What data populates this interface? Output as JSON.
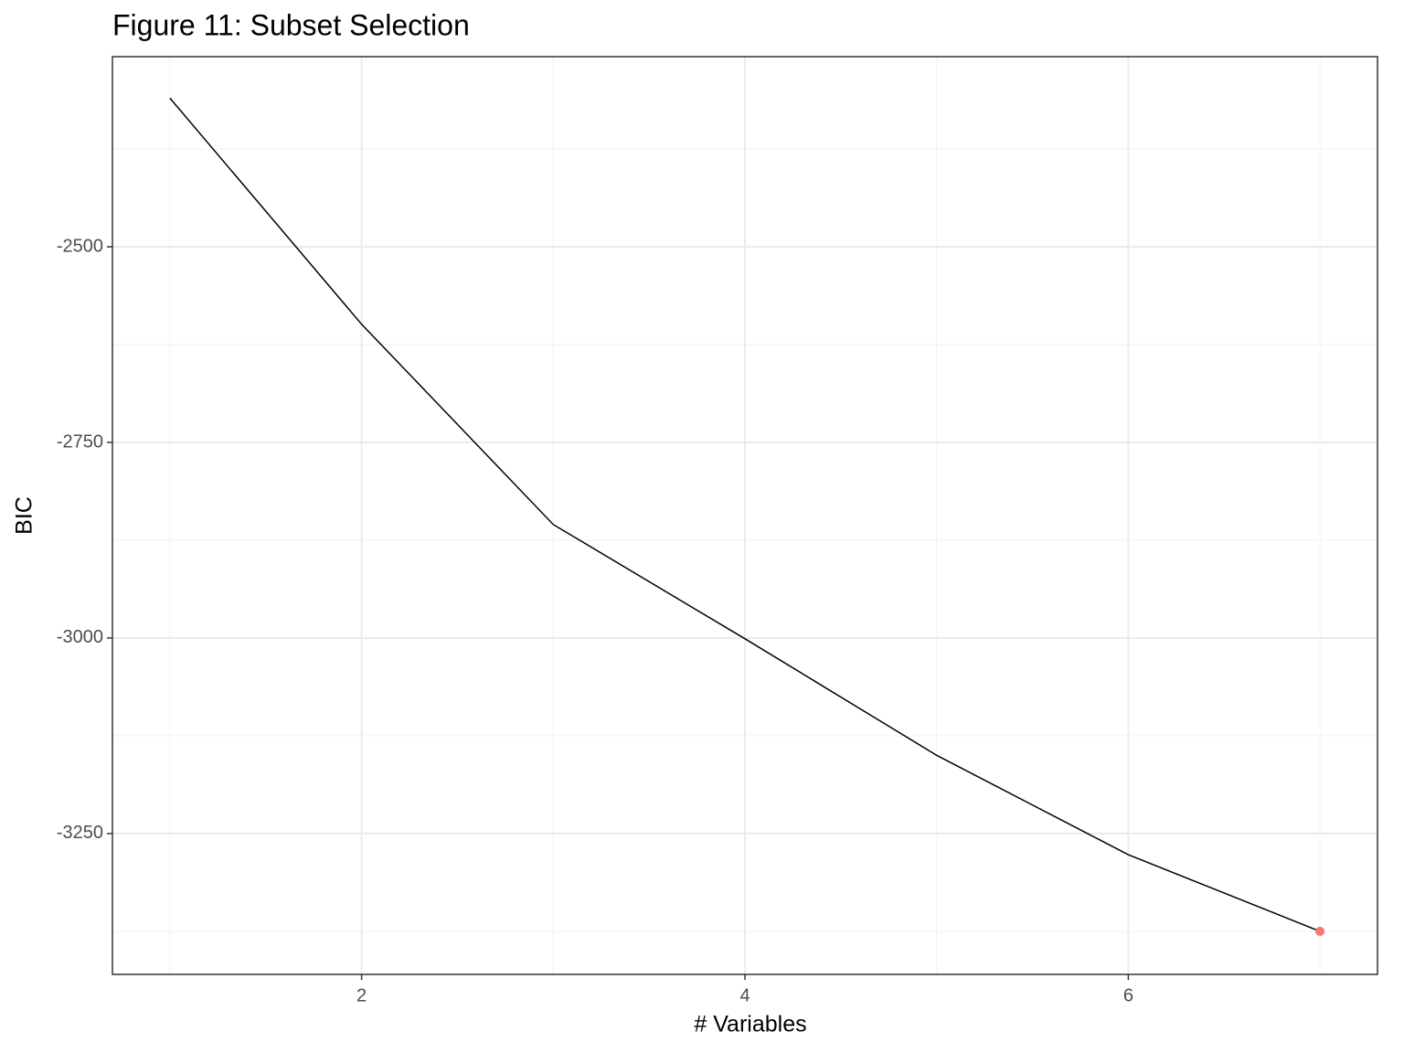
{
  "chart_data": {
    "type": "line",
    "title": "Figure 11: Subset Selection",
    "x_label": "# Variables",
    "y_label": "BIC",
    "x": [
      1,
      2,
      3,
      4,
      5,
      6,
      7
    ],
    "series": [
      {
        "color": "#000000",
        "values": [
          -2310,
          -2599,
          -2855,
          -3001,
          -3150,
          -3277,
          -3375
        ]
      }
    ],
    "highlight_index": 6,
    "highlight_color": "#F8766D",
    "xlim": [
      0.7,
      7.3
    ],
    "ylim": [
      -3430,
      -2257
    ],
    "xticks": [
      2,
      4,
      6
    ],
    "yticks": [
      -2500,
      -2750,
      -3000,
      -3250
    ],
    "x_minor_breaks": [
      1,
      3,
      5,
      7
    ],
    "y_minor_breaks": [
      -2375,
      -2625,
      -2875,
      -3125,
      -3375
    ],
    "grid": true
  }
}
